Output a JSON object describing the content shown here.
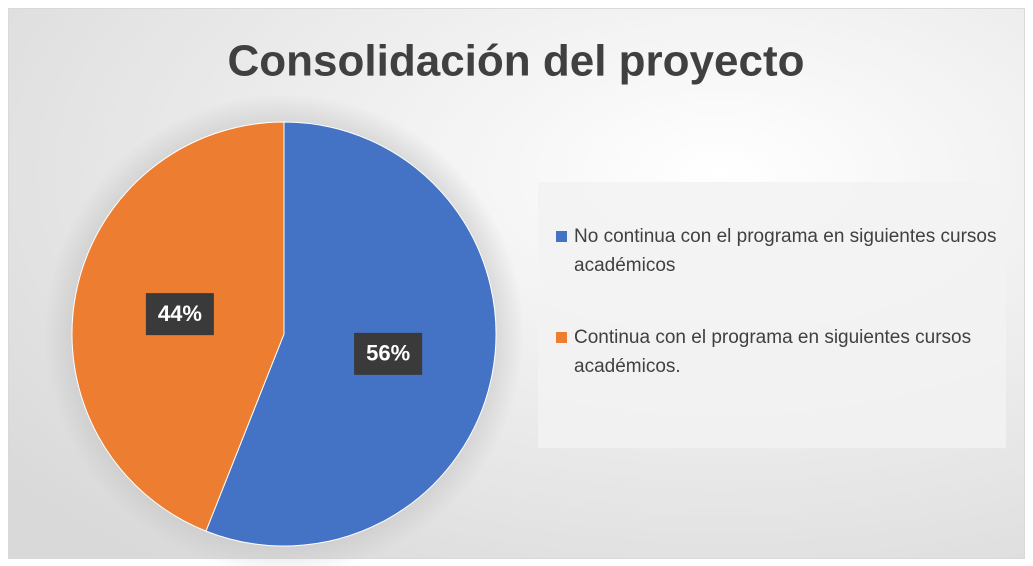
{
  "chart_data": {
    "type": "pie",
    "title": "Consolidación del proyecto",
    "categories": [
      "No continua con el programa en siguientes cursos académicos",
      "Continua con el programa en siguientes cursos académicos."
    ],
    "values": [
      56,
      44
    ],
    "value_labels": [
      "56%",
      "44%"
    ],
    "colors": [
      "#4472c4",
      "#ed7d31"
    ],
    "legend": "right"
  }
}
